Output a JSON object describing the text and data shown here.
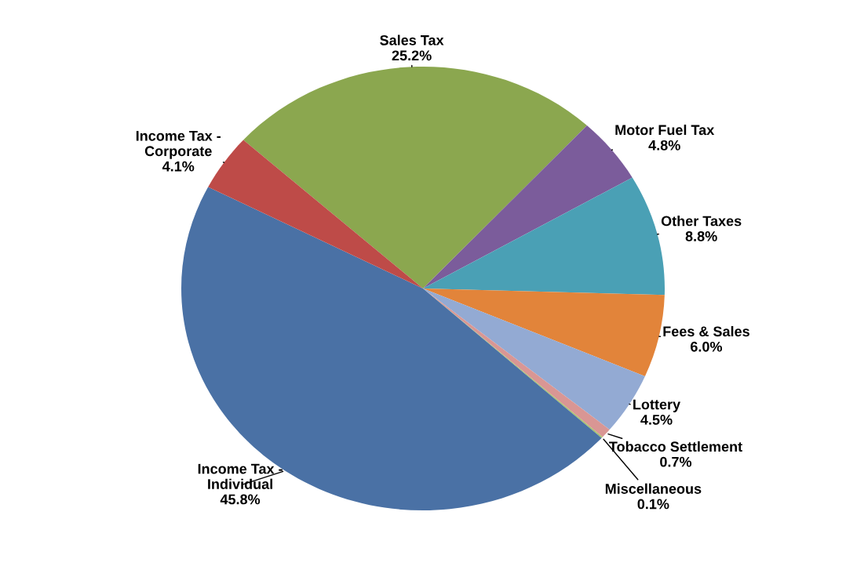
{
  "chart_data": {
    "type": "pie",
    "categories": [
      "Sales Tax",
      "Motor Fuel Tax",
      "Other Taxes",
      "Fees & Sales",
      "Lottery",
      "Tobacco Settlement",
      "Miscellaneous",
      "Income Tax -\nIndividual",
      "Income Tax -\nCorporate"
    ],
    "values": [
      25.2,
      4.8,
      8.8,
      6.0,
      4.5,
      0.7,
      0.1,
      45.8,
      4.1
    ],
    "colors": [
      "#8ba74f",
      "#7b5c9b",
      "#4aa0b5",
      "#e2843a",
      "#93aad3",
      "#d99694",
      "#a5c26a",
      "#4a71a5",
      "#be4b48"
    ],
    "value_labels": [
      "25.2%",
      "4.8%",
      "8.8%",
      "6.0%",
      "4.5%",
      "0.7%",
      "0.1%",
      "45.8%",
      "4.1%"
    ]
  }
}
